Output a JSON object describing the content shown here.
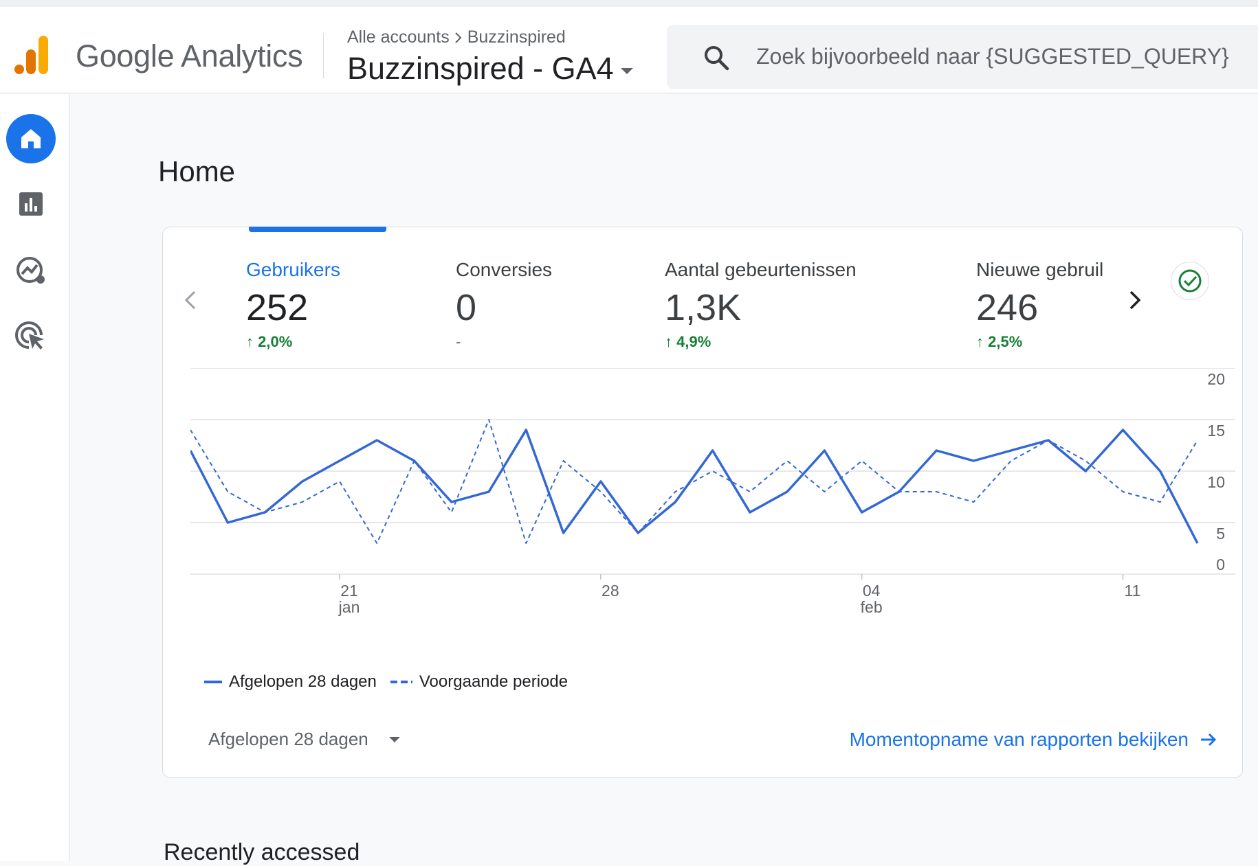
{
  "header": {
    "brand": "Google Analytics",
    "breadcrumb": {
      "root": "Alle accounts",
      "account": "Buzzinspired"
    },
    "property": "Buzzinspired - GA4",
    "search_placeholder": "Zoek bijvoorbeeld naar {SUGGESTED_QUERY}"
  },
  "nav": {
    "items": [
      {
        "name": "home",
        "icon": "home-icon",
        "active": true
      },
      {
        "name": "reports",
        "icon": "bar-chart-icon",
        "active": false
      },
      {
        "name": "explore",
        "icon": "explore-icon",
        "active": false
      },
      {
        "name": "advertising",
        "icon": "target-cursor-icon",
        "active": false
      }
    ]
  },
  "page": {
    "title": "Home"
  },
  "metrics": [
    {
      "label": "Gebruikers",
      "value": "252",
      "delta": "2,0%",
      "active": true
    },
    {
      "label": "Conversies",
      "value": "0",
      "delta": "-",
      "active": false
    },
    {
      "label": "Aantal gebeurtenissen",
      "value": "1,3K",
      "delta": "4,9%",
      "active": false
    },
    {
      "label": "Nieuwe gebruil",
      "value": "246",
      "delta": "2,5%",
      "active": false
    }
  ],
  "chart_data": {
    "type": "line",
    "y_ticks": [
      "20",
      "15",
      "10",
      "5",
      "0"
    ],
    "ylim": [
      0,
      20
    ],
    "x_ticks": [
      {
        "day": "21",
        "month": "jan",
        "index": 4
      },
      {
        "day": "28",
        "month": "",
        "index": 11
      },
      {
        "day": "04",
        "month": "feb",
        "index": 18
      },
      {
        "day": "11",
        "month": "",
        "index": 25
      }
    ],
    "series": [
      {
        "name": "Afgelopen 28 dagen",
        "style": "solid",
        "values": [
          12,
          5,
          6,
          9,
          11,
          13,
          11,
          7,
          8,
          14,
          4,
          9,
          4,
          7,
          12,
          6,
          8,
          12,
          6,
          8,
          12,
          11,
          12,
          13,
          10,
          14,
          10,
          3
        ]
      },
      {
        "name": "Voorgaande periode",
        "style": "dashed",
        "values": [
          14,
          8,
          6,
          7,
          9,
          3,
          11,
          6,
          15,
          3,
          11,
          8,
          4,
          8,
          10,
          8,
          11,
          8,
          11,
          8,
          8,
          7,
          11,
          13,
          11,
          8,
          7,
          13
        ]
      }
    ],
    "colors": {
      "line": "#3367d6",
      "grid": "#e0e0e0"
    }
  },
  "footer": {
    "period_selector": "Afgelopen 28 dagen",
    "link": "Momentopname van rapporten bekijken"
  },
  "recent": {
    "title": "Recently accessed"
  }
}
